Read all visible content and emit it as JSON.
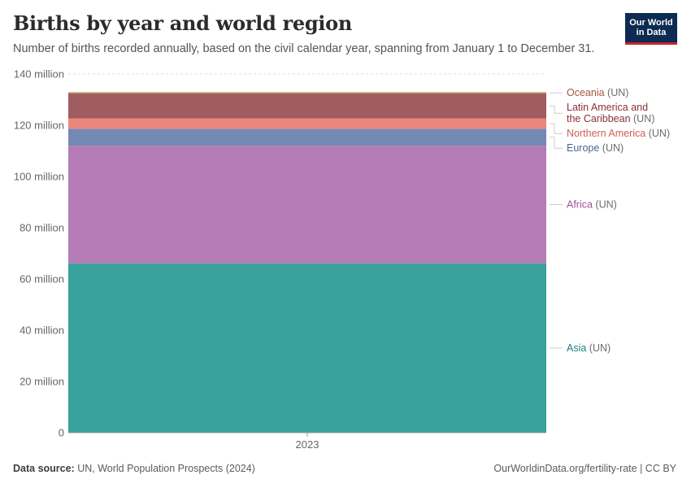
{
  "header": {
    "title": "Births by year and world region",
    "subtitle": "Number of births recorded annually, based on the civil calendar year, spanning from January 1 to December 31."
  },
  "logo": {
    "line1": "Our World",
    "line2": "in Data"
  },
  "footer": {
    "source_label": "Data source:",
    "source_text": "UN, World Population Prospects (2024)",
    "url_text": "OurWorldinData.org/fertility-rate | CC BY"
  },
  "chart_data": {
    "type": "area",
    "stacked": true,
    "x": [
      "2023"
    ],
    "ylim": [
      0,
      140000000
    ],
    "yticks": [
      {
        "value": 0,
        "label": "0"
      },
      {
        "value": 20000000,
        "label": "20 million"
      },
      {
        "value": 40000000,
        "label": "40 million"
      },
      {
        "value": 60000000,
        "label": "60 million"
      },
      {
        "value": 80000000,
        "label": "80 million"
      },
      {
        "value": 100000000,
        "label": "100 million"
      },
      {
        "value": 120000000,
        "label": "120 million"
      },
      {
        "value": 140000000,
        "label": "140 million"
      }
    ],
    "grid": true,
    "legend_placement": "right",
    "series": [
      {
        "name": "Asia",
        "suffix": " (UN)",
        "values": [
          66100000
        ],
        "color": "#38a19b",
        "label_color": "#1f7f7a"
      },
      {
        "name": "Africa",
        "suffix": " (UN)",
        "values": [
          45900000
        ],
        "color": "#b57bb4",
        "label_color": "#9a5298"
      },
      {
        "name": "Europe",
        "suffix": " (UN)",
        "values": [
          6600000
        ],
        "color": "#7589b6",
        "label_color": "#4e6594"
      },
      {
        "name": "Northern America",
        "suffix": " (UN)",
        "values": [
          4100000
        ],
        "color": "#e9877d",
        "label_color": "#d05f52"
      },
      {
        "name": "Latin America and the Caribbean",
        "name_lines": [
          "Latin America and",
          "the Caribbean"
        ],
        "suffix": " (UN)",
        "values": [
          9700000
        ],
        "color": "#a15c62",
        "label_color": "#8a2f38"
      },
      {
        "name": "Oceania",
        "suffix": " (UN)",
        "values": [
          500000
        ],
        "color": "#b59b52",
        "label_color": "#a3573d"
      }
    ]
  }
}
